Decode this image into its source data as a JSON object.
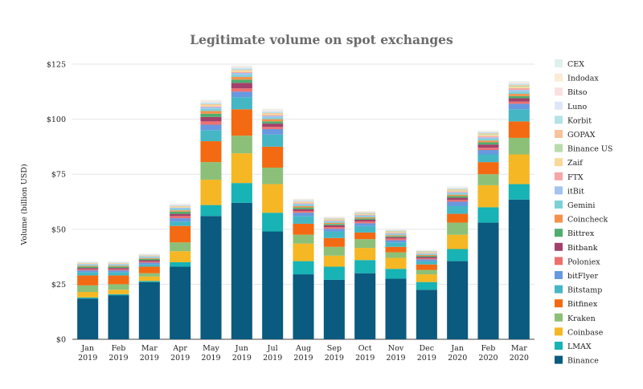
{
  "chart_data": {
    "type": "bar",
    "stacked": true,
    "title": "Legitimate volume on spot exchanges",
    "xlabel": "",
    "ylabel": "Volume (billion USD)",
    "ylim": [
      0,
      125
    ],
    "yticks": [
      0,
      25,
      50,
      75,
      100,
      125
    ],
    "ytick_labels": [
      "$0",
      "$25",
      "$50",
      "$75",
      "$100",
      "$125"
    ],
    "legend_position": "right",
    "categories": [
      [
        "Jan",
        "2019"
      ],
      [
        "Feb",
        "2019"
      ],
      [
        "Mar",
        "2019"
      ],
      [
        "Apr",
        "2019"
      ],
      [
        "May",
        "2019"
      ],
      [
        "Jun",
        "2019"
      ],
      [
        "Jul",
        "2019"
      ],
      [
        "Aug",
        "2019"
      ],
      [
        "Sep",
        "2019"
      ],
      [
        "Oct",
        "2019"
      ],
      [
        "Nov",
        "2019"
      ],
      [
        "Dec",
        "2019"
      ],
      [
        "Jan",
        "2020"
      ],
      [
        "Feb",
        "2020"
      ],
      [
        "Mar",
        "2020"
      ]
    ],
    "series": [
      {
        "name": "Binance",
        "color": "#0b5a7f",
        "values": [
          18.5,
          20,
          26,
          33,
          56,
          62,
          49,
          29.5,
          27,
          30,
          27.5,
          22.5,
          35.5,
          53,
          63.5
        ]
      },
      {
        "name": "LMAX",
        "color": "#17b3b5",
        "values": [
          0.5,
          0.5,
          0.5,
          2,
          5,
          9,
          8.5,
          6,
          6,
          6,
          4.5,
          3.5,
          5.5,
          7,
          7
        ]
      },
      {
        "name": "Coinbase",
        "color": "#f5b724",
        "values": [
          2.5,
          2,
          2,
          5,
          11.5,
          13.5,
          13,
          8,
          5,
          5.5,
          5,
          3.5,
          6.5,
          10,
          13.5
        ]
      },
      {
        "name": "Kraken",
        "color": "#8cc079",
        "values": [
          3,
          2.5,
          1.5,
          4,
          8,
          8,
          7.5,
          4,
          4,
          4,
          2.5,
          2,
          5.5,
          5,
          7.5
        ]
      },
      {
        "name": "Bitfinex",
        "color": "#f36a12",
        "values": [
          4.5,
          4,
          3,
          7.5,
          9.5,
          12,
          9.5,
          5,
          4,
          3,
          2.5,
          2.5,
          4,
          5.5,
          7.5
        ]
      },
      {
        "name": "Bitstamp",
        "color": "#45b7c4",
        "values": [
          1.5,
          1.5,
          1,
          2,
          5,
          5.5,
          5.5,
          3.5,
          3,
          3,
          2,
          1.5,
          3.5,
          3.5,
          5.5
        ]
      },
      {
        "name": "bitFlyer",
        "color": "#6898e0",
        "values": [
          0.8,
          0.8,
          0.8,
          1.5,
          2.5,
          2.5,
          2.5,
          1.5,
          1.2,
          1.2,
          1,
          0.8,
          2,
          2,
          2.5
        ]
      },
      {
        "name": "Poloniex",
        "color": "#ed7070",
        "values": [
          0.5,
          0.5,
          0.5,
          1,
          1.5,
          1.5,
          1,
          0.8,
          0.8,
          0.8,
          0.8,
          0.5,
          0.8,
          1,
          1
        ]
      },
      {
        "name": "Bitbank",
        "color": "#a3416c",
        "values": [
          0.6,
          0.6,
          0.6,
          1,
          2,
          2.5,
          1.5,
          0.8,
          0.8,
          0.8,
          0.6,
          0.6,
          1,
          1.5,
          1.5
        ]
      },
      {
        "name": "Bittrex",
        "color": "#4fae6d",
        "values": [
          0.6,
          0.6,
          0.6,
          1,
          1.5,
          1.5,
          1,
          0.8,
          0.6,
          0.6,
          0.5,
          0.5,
          0.8,
          1,
          1
        ]
      },
      {
        "name": "Coincheck",
        "color": "#f4924c",
        "values": [
          0.4,
          0.4,
          0.4,
          0.6,
          1.2,
          1.2,
          1,
          0.6,
          0.5,
          0.5,
          0.4,
          0.4,
          0.6,
          0.8,
          1
        ]
      },
      {
        "name": "Gemini",
        "color": "#7dd0d6",
        "values": [
          0.4,
          0.4,
          0.4,
          0.6,
          1,
          1,
          0.8,
          0.6,
          0.5,
          0.5,
          0.4,
          0.4,
          0.6,
          0.8,
          1
        ]
      },
      {
        "name": "itBit",
        "color": "#a3c4ef",
        "values": [
          0.4,
          0.4,
          0.4,
          0.6,
          0.8,
          0.8,
          0.7,
          0.5,
          0.4,
          0.4,
          0.4,
          0.3,
          0.5,
          0.6,
          0.8
        ]
      },
      {
        "name": "FTX",
        "color": "#f5a6a6",
        "values": [
          0,
          0,
          0,
          0,
          0.3,
          0.4,
          0.4,
          0.3,
          0.3,
          0.3,
          0.3,
          0.2,
          0.4,
          0.6,
          0.8
        ]
      },
      {
        "name": "Zaif",
        "color": "#f8d99a",
        "values": [
          0.3,
          0.3,
          0.3,
          0.4,
          0.6,
          0.6,
          0.5,
          0.4,
          0.3,
          0.3,
          0.3,
          0.3,
          0.4,
          0.5,
          0.6
        ]
      },
      {
        "name": "Binance US",
        "color": "#b8dcab",
        "values": [
          0,
          0,
          0,
          0,
          0,
          0,
          0,
          0,
          0.3,
          0.3,
          0.3,
          0.2,
          0.3,
          0.4,
          0.5
        ]
      },
      {
        "name": "GOPAX",
        "color": "#f8c39a",
        "values": [
          0.2,
          0.2,
          0.2,
          0.3,
          0.4,
          0.4,
          0.4,
          0.3,
          0.2,
          0.2,
          0.2,
          0.2,
          0.3,
          0.4,
          0.4
        ]
      },
      {
        "name": "Korbit",
        "color": "#b3e3e6",
        "values": [
          0.2,
          0.2,
          0.2,
          0.3,
          0.5,
          0.6,
          0.5,
          0.3,
          0.2,
          0.2,
          0.2,
          0.2,
          0.3,
          0.4,
          0.4
        ]
      },
      {
        "name": "Luno",
        "color": "#dde7f7",
        "values": [
          0.2,
          0.2,
          0.2,
          0.3,
          0.5,
          0.5,
          0.5,
          0.3,
          0.2,
          0.2,
          0.2,
          0.2,
          0.3,
          0.3,
          0.4
        ]
      },
      {
        "name": "Bitso",
        "color": "#fbe0e0",
        "values": [
          0.1,
          0.1,
          0.1,
          0.2,
          0.3,
          0.3,
          0.3,
          0.2,
          0.2,
          0.2,
          0.1,
          0.1,
          0.2,
          0.2,
          0.3
        ]
      },
      {
        "name": "Indodax",
        "color": "#fcecd6",
        "values": [
          0.1,
          0.1,
          0.1,
          0.2,
          0.3,
          0.3,
          0.3,
          0.2,
          0.2,
          0.2,
          0.1,
          0.1,
          0.2,
          0.2,
          0.3
        ]
      },
      {
        "name": "CEX",
        "color": "#dff1ee",
        "values": [
          0.1,
          0.1,
          0.1,
          0.2,
          0.3,
          0.3,
          0.3,
          0.2,
          0.1,
          0.1,
          0.1,
          0.1,
          0.2,
          0.2,
          0.3
        ]
      }
    ]
  }
}
